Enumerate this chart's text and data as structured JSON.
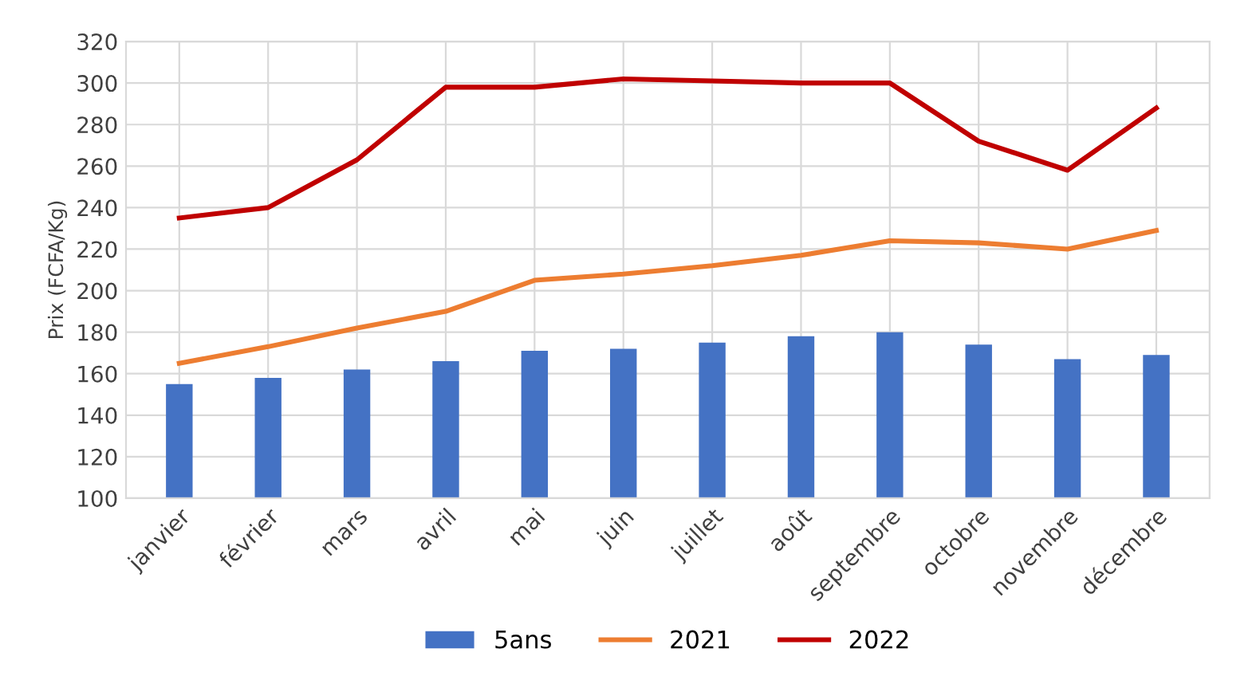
{
  "chart_data": {
    "type": "bar",
    "ylabel": "Prix (FCFA/Kg)",
    "categories": [
      "janvier",
      "février",
      "mars",
      "avril",
      "mai",
      "juin",
      "juillet",
      "août",
      "septembre",
      "octobre",
      "novembre",
      "décembre"
    ],
    "series": [
      {
        "name": "5ans",
        "color": "#4472c4",
        "values": [
          155,
          158,
          162,
          166,
          171,
          172,
          175,
          178,
          180,
          174,
          167,
          169
        ]
      },
      {
        "name": "2021",
        "type": "line",
        "color": "#ed7d31",
        "values": [
          165,
          173,
          182,
          190,
          205,
          208,
          212,
          217,
          224,
          223,
          220,
          229
        ]
      },
      {
        "name": "2022",
        "type": "line",
        "color": "#c00000",
        "values": [
          235,
          240,
          263,
          298,
          298,
          302,
          301,
          300,
          300,
          272,
          258,
          288
        ]
      }
    ],
    "ylim": [
      100,
      320
    ],
    "yticks": [
      100,
      120,
      140,
      160,
      180,
      200,
      220,
      240,
      260,
      280,
      300,
      320
    ],
    "grid": true,
    "legend": "bottom",
    "marker": "none",
    "line_style": "solid"
  }
}
